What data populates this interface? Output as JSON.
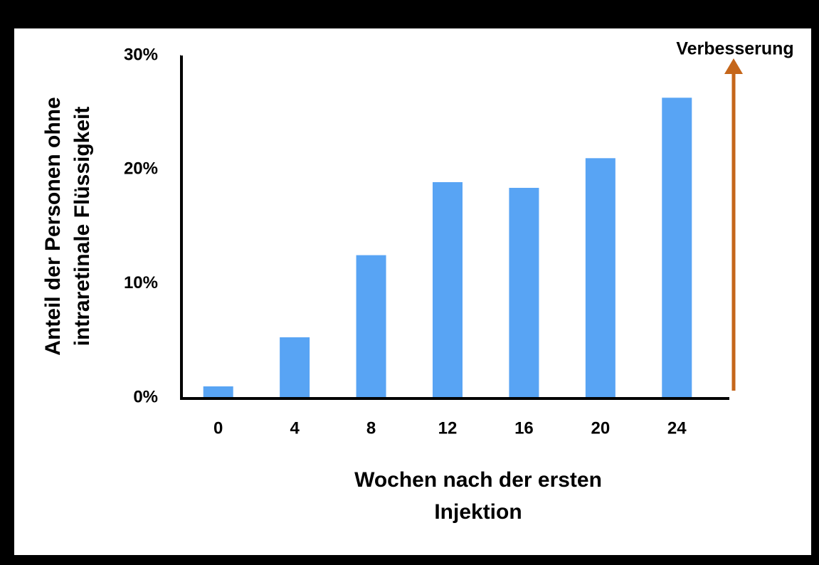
{
  "chart_data": {
    "type": "bar",
    "ylabel": [
      "Anteil der Personen ohne",
      "intraretinale Flüssigkeit"
    ],
    "xlabel": [
      "Wochen nach der ersten",
      "Injektion"
    ],
    "annotation": "Verbesserung",
    "categories": [
      "0",
      "4",
      "8",
      "12",
      "16",
      "20",
      "24"
    ],
    "values": [
      1.0,
      5.3,
      12.5,
      18.9,
      18.4,
      21.0,
      26.3
    ],
    "color": "#58a4f4",
    "arrow_color": "#c5661a",
    "ylim": [
      0,
      30
    ],
    "yticks": [
      {
        "value": 0,
        "label": "0%"
      },
      {
        "value": 10,
        "label": "10%"
      },
      {
        "value": 20,
        "label": "20%"
      },
      {
        "value": 30,
        "label": "30%"
      }
    ],
    "grid": false
  }
}
